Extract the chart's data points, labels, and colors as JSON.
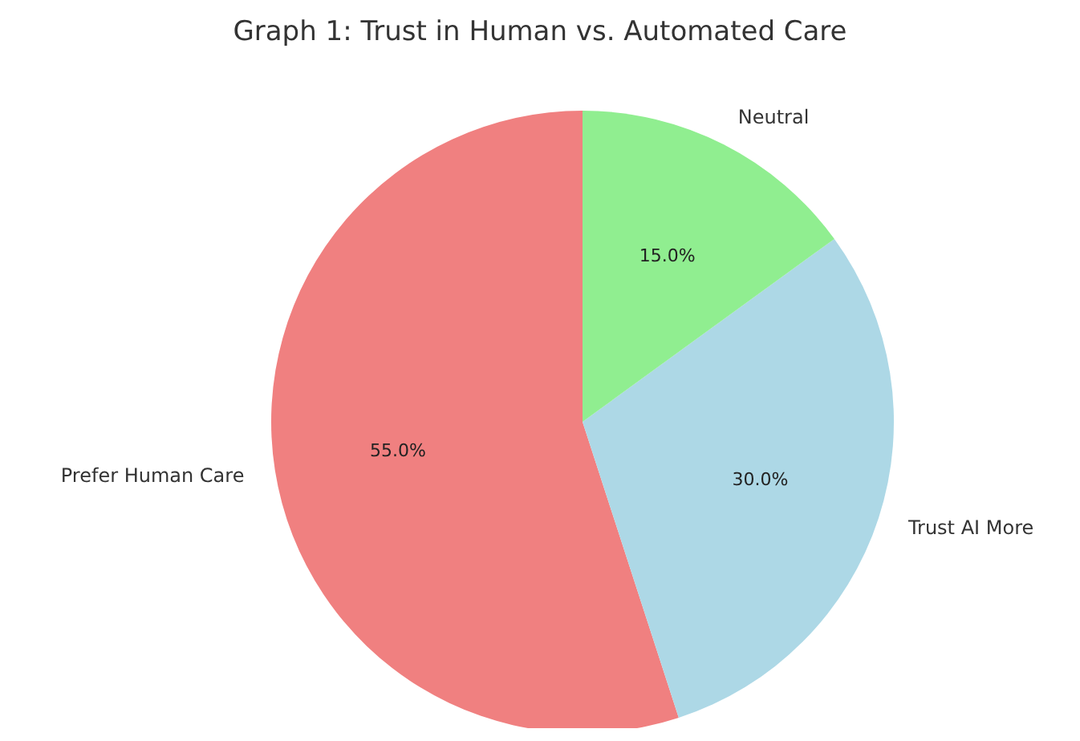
{
  "chart_data": {
    "type": "pie",
    "title": "Graph 1: Trust in Human vs. Automated Care",
    "categories": [
      "Prefer Human Care",
      "Trust AI More",
      "Neutral"
    ],
    "values": [
      55,
      30,
      15
    ],
    "colors": [
      "#f08080",
      "#add8e6",
      "#90ee90"
    ],
    "value_labels": [
      "55.0%",
      "30.0%",
      "15.0%"
    ],
    "legend": false
  }
}
